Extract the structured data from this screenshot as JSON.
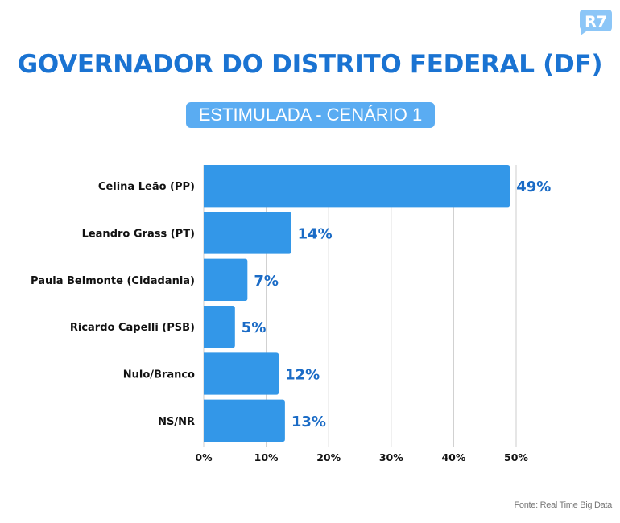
{
  "brand": {
    "logo_text": "R7",
    "logo_icon": "r7-speech-bubble-logo",
    "logo_color": "#8cc6f7"
  },
  "header": {
    "title": "GOVERNADOR DO DISTRITO FEDERAL (DF)",
    "subtitle": "ESTIMULADA - CENÁRIO 1"
  },
  "colors": {
    "title": "#1a73d2",
    "bar": "#3397e8",
    "value_label": "#1a6bc6",
    "badge": "#5aacf2",
    "grid": "#cccccc"
  },
  "chart_data": {
    "type": "bar",
    "orientation": "horizontal",
    "title": "GOVERNADOR DO DISTRITO FEDERAL (DF)",
    "subtitle": "ESTIMULADA - CENÁRIO 1",
    "categories": [
      "Celina Leão (PP)",
      "Leandro Grass (PT)",
      "Paula Belmonte (Cidadania)",
      "Ricardo Capelli (PSB)",
      "Nulo/Branco",
      "NS/NR"
    ],
    "values": [
      49,
      14,
      7,
      5,
      12,
      13
    ],
    "value_labels": [
      "49%",
      "14%",
      "7%",
      "5%",
      "12%",
      "13%"
    ],
    "xlabel": "",
    "ylabel": "",
    "xlim": [
      0,
      50
    ],
    "x_ticks": [
      0,
      10,
      20,
      30,
      40,
      50
    ],
    "x_tick_labels": [
      "0%",
      "10%",
      "20%",
      "30%",
      "40%",
      "50%"
    ],
    "grid": true,
    "legend": "none"
  },
  "footer": {
    "source": "Fonte: Real Time Big Data"
  }
}
